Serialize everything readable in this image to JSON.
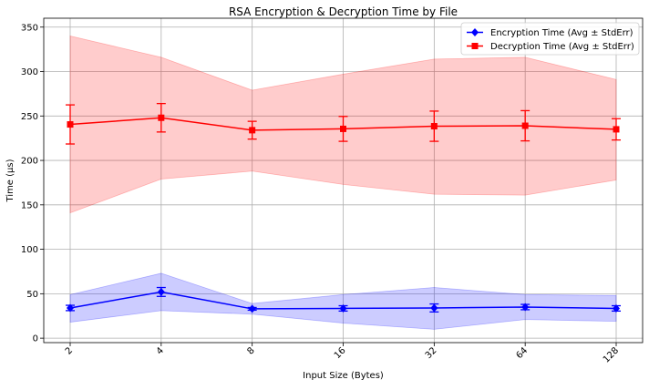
{
  "chart_data": {
    "type": "line",
    "title": "RSA Encryption & Decryption Time by File",
    "xlabel": "Input Size (Bytes)",
    "ylabel": "Time (µs)",
    "categories": [
      "2",
      "4",
      "8",
      "16",
      "32",
      "64",
      "128"
    ],
    "ylim": [
      -5,
      360
    ],
    "yticks": [
      0,
      50,
      100,
      150,
      200,
      250,
      300,
      350
    ],
    "grid": true,
    "legend_position": "top-right",
    "series": [
      {
        "name": "Encryption Time (Avg ± StdErr)",
        "color": "#0000ff",
        "marker": "diamond",
        "values": [
          34,
          52,
          33,
          33.5,
          34,
          35,
          33.5
        ],
        "stderr": [
          3,
          5,
          1.5,
          3,
          4.5,
          3,
          3
        ],
        "band_low": [
          18,
          31,
          27,
          17,
          10,
          21,
          19
        ],
        "band_high": [
          49,
          73,
          39,
          49,
          57,
          49,
          48
        ]
      },
      {
        "name": "Decryption Time (Avg ± StdErr)",
        "color": "#ff0000",
        "marker": "square",
        "values": [
          240.5,
          248,
          234,
          235.5,
          238.5,
          239,
          235
        ],
        "stderr": [
          22,
          16,
          10,
          14,
          17,
          17,
          12
        ],
        "band_low": [
          141,
          179,
          188,
          173,
          162,
          161,
          178
        ],
        "band_high": [
          340,
          316,
          279,
          297,
          314,
          316,
          291
        ]
      }
    ]
  }
}
